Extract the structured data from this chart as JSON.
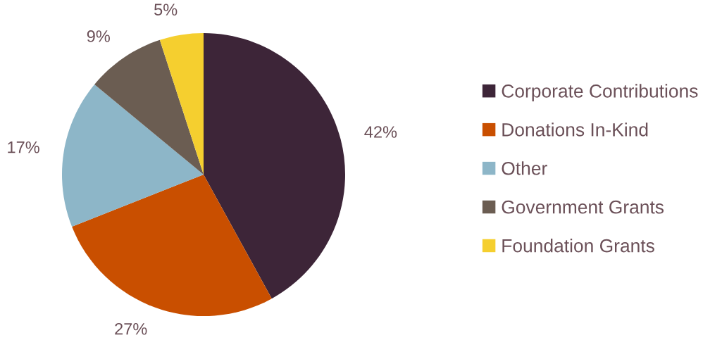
{
  "chart_data": {
    "type": "pie",
    "categories": [
      "Corporate Contributions",
      "Donations In-Kind",
      "Other",
      "Government Grants",
      "Foundation Grants"
    ],
    "values": [
      42,
      27,
      17,
      9,
      5
    ],
    "colors": [
      "#3d2538",
      "#c94f00",
      "#8db6c8",
      "#6b5d52",
      "#f5cf2f"
    ],
    "value_labels": [
      "42%",
      "27%",
      "17%",
      "9%",
      "5%"
    ],
    "legend": "right"
  }
}
